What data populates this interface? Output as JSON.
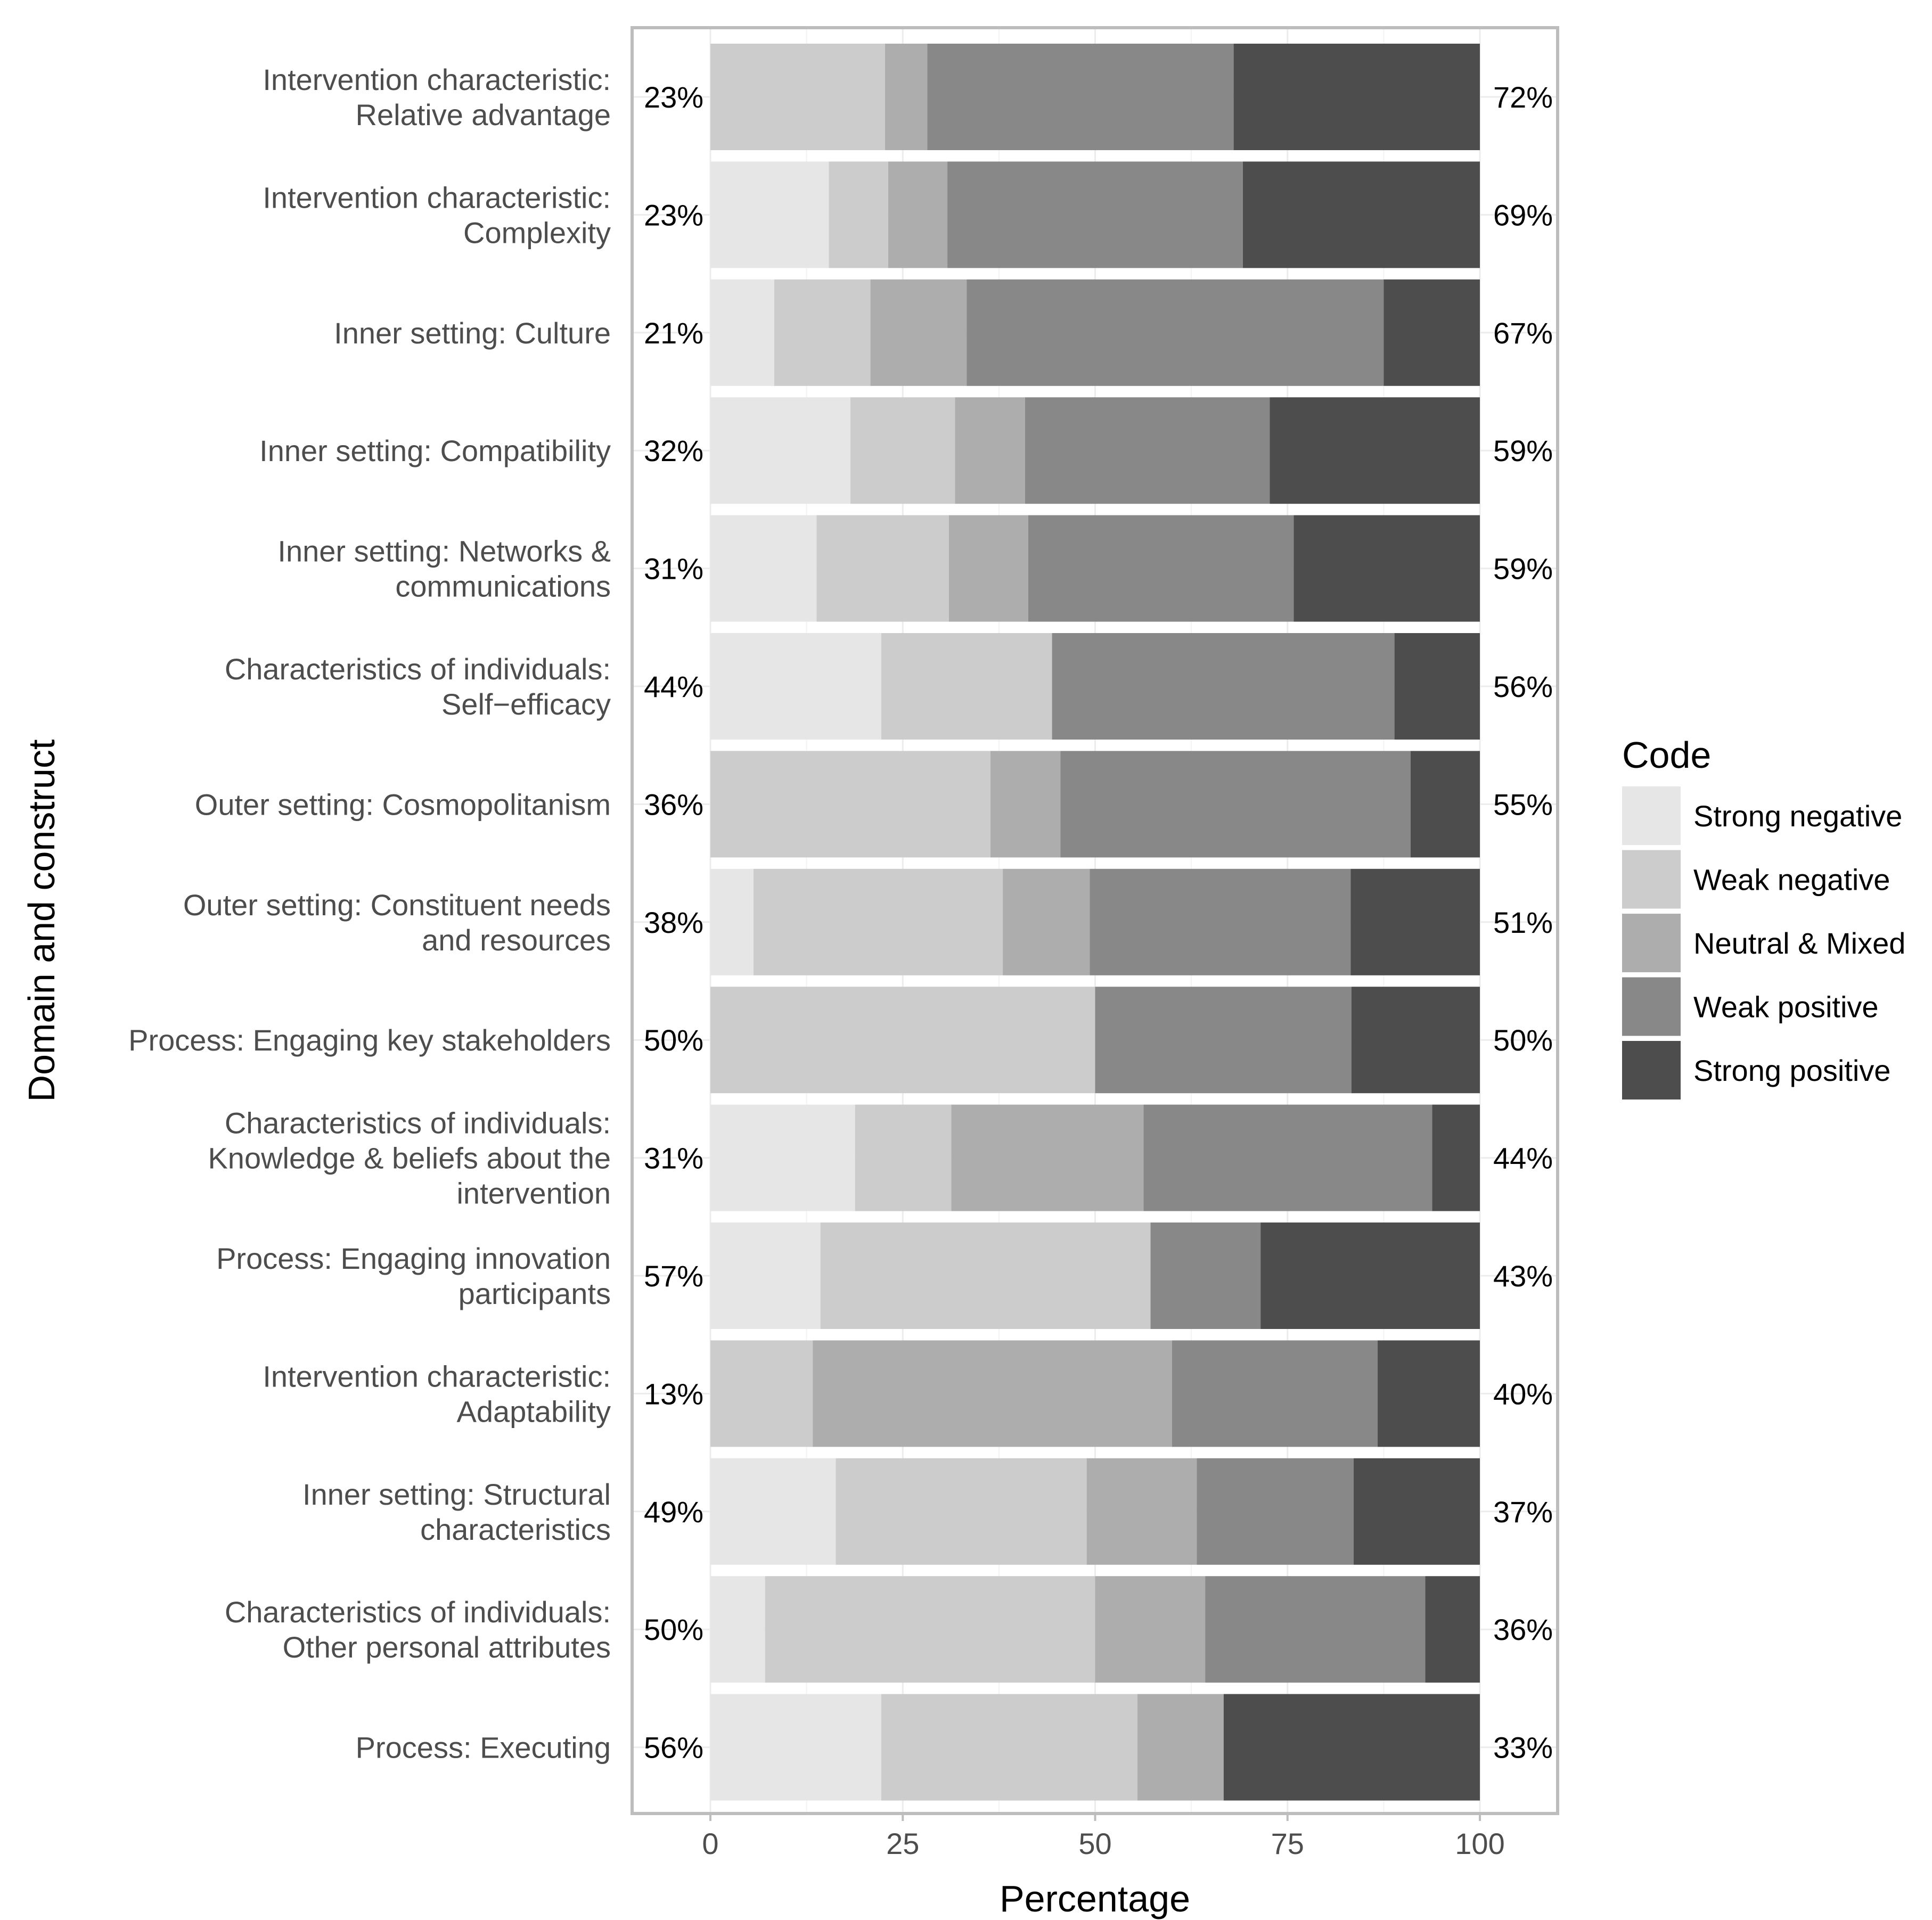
{
  "chart_data": {
    "type": "bar",
    "orientation": "horizontal",
    "stacked": true,
    "xlabel": "Percentage",
    "ylabel": "Domain and construct",
    "xlim": [
      -10,
      110
    ],
    "xticks": [
      0,
      25,
      50,
      75,
      100
    ],
    "grid": true,
    "legend": {
      "title": "Code",
      "placement": "right",
      "entries": [
        "Strong negative",
        "Weak negative",
        "Neutral & Mixed",
        "Weak positive",
        "Strong positive"
      ]
    },
    "colors": [
      "#e6e6e6",
      "#cccccc",
      "#adadad",
      "#888888",
      "#4d4d4d"
    ],
    "categories": [
      [
        "Intervention characteristic:",
        "Relative advantage"
      ],
      [
        "Intervention characteristic:",
        "Complexity"
      ],
      [
        "Inner setting: Culture"
      ],
      [
        "Inner setting: Compatibility"
      ],
      [
        "Inner setting: Networks &",
        "communications"
      ],
      [
        "Characteristics of individuals:",
        "Self−efficacy"
      ],
      [
        "Outer setting: Cosmopolitanism"
      ],
      [
        "Outer setting: Constituent needs",
        "and resources"
      ],
      [
        "Process: Engaging key stakeholders"
      ],
      [
        "Characteristics of individuals:",
        "Knowledge & beliefs about the",
        "intervention"
      ],
      [
        "Process: Engaging innovation",
        "participants"
      ],
      [
        "Intervention characteristic:",
        "Adaptability"
      ],
      [
        "Inner setting: Structural",
        "characteristics"
      ],
      [
        "Characteristics of individuals:",
        "Other personal attributes"
      ],
      [
        "Process: Executing"
      ]
    ],
    "series": [
      {
        "name": "Strong negative",
        "values": [
          0,
          15.4,
          8.3,
          18.2,
          13.8,
          22.2,
          0,
          5.6,
          0,
          18.8,
          14.3,
          0,
          16.3,
          7.1,
          22.2
        ]
      },
      {
        "name": "Weak negative",
        "values": [
          22.7,
          7.7,
          12.5,
          13.6,
          17.2,
          22.2,
          36.4,
          32.4,
          50,
          12.5,
          42.9,
          13.3,
          32.6,
          42.9,
          33.3
        ]
      },
      {
        "name": "Neutral & Mixed",
        "values": [
          5.5,
          7.7,
          12.5,
          9.1,
          10.3,
          0,
          9.1,
          11.3,
          0,
          25,
          0,
          46.7,
          14.3,
          14.3,
          11.2
        ]
      },
      {
        "name": "Weak positive",
        "values": [
          39.8,
          38.4,
          54.2,
          31.8,
          34.5,
          44.5,
          45.5,
          33.9,
          33.3,
          37.5,
          14.3,
          26.7,
          20.4,
          28.6,
          0
        ]
      },
      {
        "name": "Strong positive",
        "values": [
          32,
          30.8,
          12.5,
          27.3,
          24.2,
          11.1,
          9,
          16.8,
          16.7,
          6.2,
          28.5,
          13.3,
          16.4,
          7.1,
          33.3
        ]
      }
    ],
    "negative_labels": [
      "23%",
      "23%",
      "21%",
      "32%",
      "31%",
      "44%",
      "36%",
      "38%",
      "50%",
      "31%",
      "57%",
      "13%",
      "49%",
      "50%",
      "56%"
    ],
    "positive_labels": [
      "72%",
      "69%",
      "67%",
      "59%",
      "59%",
      "56%",
      "55%",
      "51%",
      "50%",
      "44%",
      "43%",
      "40%",
      "37%",
      "36%",
      "33%"
    ]
  }
}
